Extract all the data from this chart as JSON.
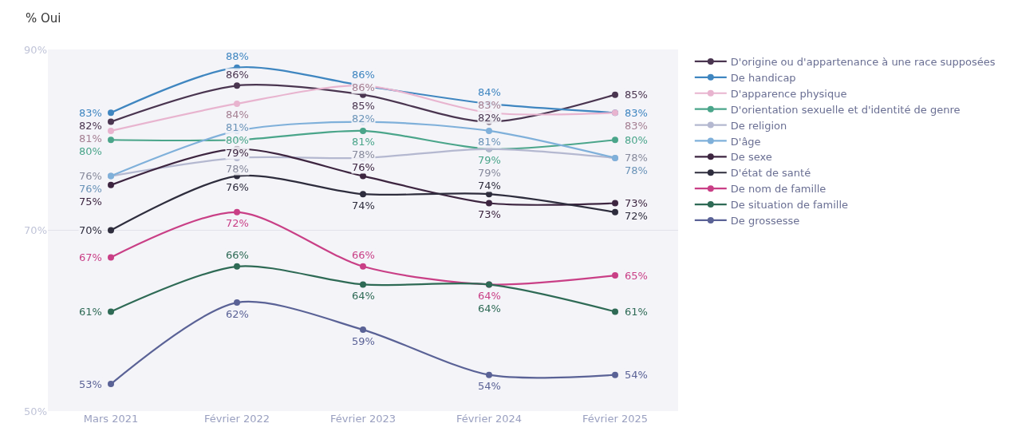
{
  "chart_data": {
    "type": "line",
    "ylabel": "% Oui",
    "categories": [
      "Mars 2021",
      "Février 2022",
      "Février 2023",
      "Février 2024",
      "Février 2025"
    ],
    "ylim": [
      50,
      90
    ],
    "yticks": [
      {
        "value": 50,
        "label": "50%"
      },
      {
        "value": 70,
        "label": "70%"
      },
      {
        "value": 90,
        "label": "90%"
      }
    ],
    "grid": "y",
    "legend": "right",
    "marker": "circle",
    "line_style": "solid",
    "series": [
      {
        "name": "D'origine ou d'appartenance à une race supposées",
        "color": "#4a3550",
        "values": [
          82,
          86,
          85,
          82,
          85
        ],
        "value_labels": [
          "82%",
          "86%",
          "85%",
          "82%",
          "85%"
        ]
      },
      {
        "name": "De handicap",
        "color": "#3f86c0",
        "values": [
          83,
          88,
          86,
          84,
          83
        ],
        "value_labels": [
          "83%",
          "88%",
          "86%",
          "84%",
          "83%"
        ]
      },
      {
        "name": "D'apparence physique",
        "color": "#e8b4cf",
        "values": [
          81,
          84,
          86,
          83,
          83
        ],
        "value_labels": [
          "81%",
          "84%",
          "86%",
          "83%",
          "83%"
        ]
      },
      {
        "name": "D'orientation sexuelle et d'identité de genre",
        "color": "#4aa58a",
        "values": [
          80,
          80,
          81,
          79,
          80
        ],
        "value_labels": [
          "80%",
          "80%",
          "81%",
          "79%",
          "80%"
        ]
      },
      {
        "name": "De religion",
        "color": "#b4b8d0",
        "values": [
          76,
          78,
          78,
          79,
          78
        ],
        "value_labels": [
          "76%",
          "78%",
          "78%",
          "79%",
          "78%"
        ]
      },
      {
        "name": "D'âge",
        "color": "#7fb0da",
        "values": [
          76,
          81,
          82,
          81,
          78
        ],
        "value_labels": [
          "76%",
          "81%",
          "82%",
          "81%",
          "78%"
        ]
      },
      {
        "name": "De sexe",
        "color": "#3d2540",
        "values": [
          75,
          79,
          76,
          73,
          73
        ],
        "value_labels": [
          "75%",
          "79%",
          "76%",
          "73%",
          "73%"
        ]
      },
      {
        "name": "D'état de santé",
        "color": "#2e2d3d",
        "values": [
          70,
          76,
          74,
          74,
          72
        ],
        "value_labels": [
          "70%",
          "76%",
          "74%",
          "74%",
          "72%"
        ]
      },
      {
        "name": "De nom de famille",
        "color": "#c93f86",
        "values": [
          67,
          72,
          66,
          64,
          65
        ],
        "value_labels": [
          "67%",
          "72%",
          "66%",
          "64%",
          "65%"
        ]
      },
      {
        "name": "De situation de famille",
        "color": "#2e6a55",
        "values": [
          61,
          66,
          64,
          64,
          61
        ],
        "value_labels": [
          "61%",
          "66%",
          "64%",
          "64%",
          "61%"
        ]
      },
      {
        "name": "De grossesse",
        "color": "#5a6296",
        "values": [
          53,
          62,
          59,
          54,
          54
        ],
        "value_labels": [
          "53%",
          "62%",
          "59%",
          "54%",
          "54%"
        ]
      }
    ]
  }
}
